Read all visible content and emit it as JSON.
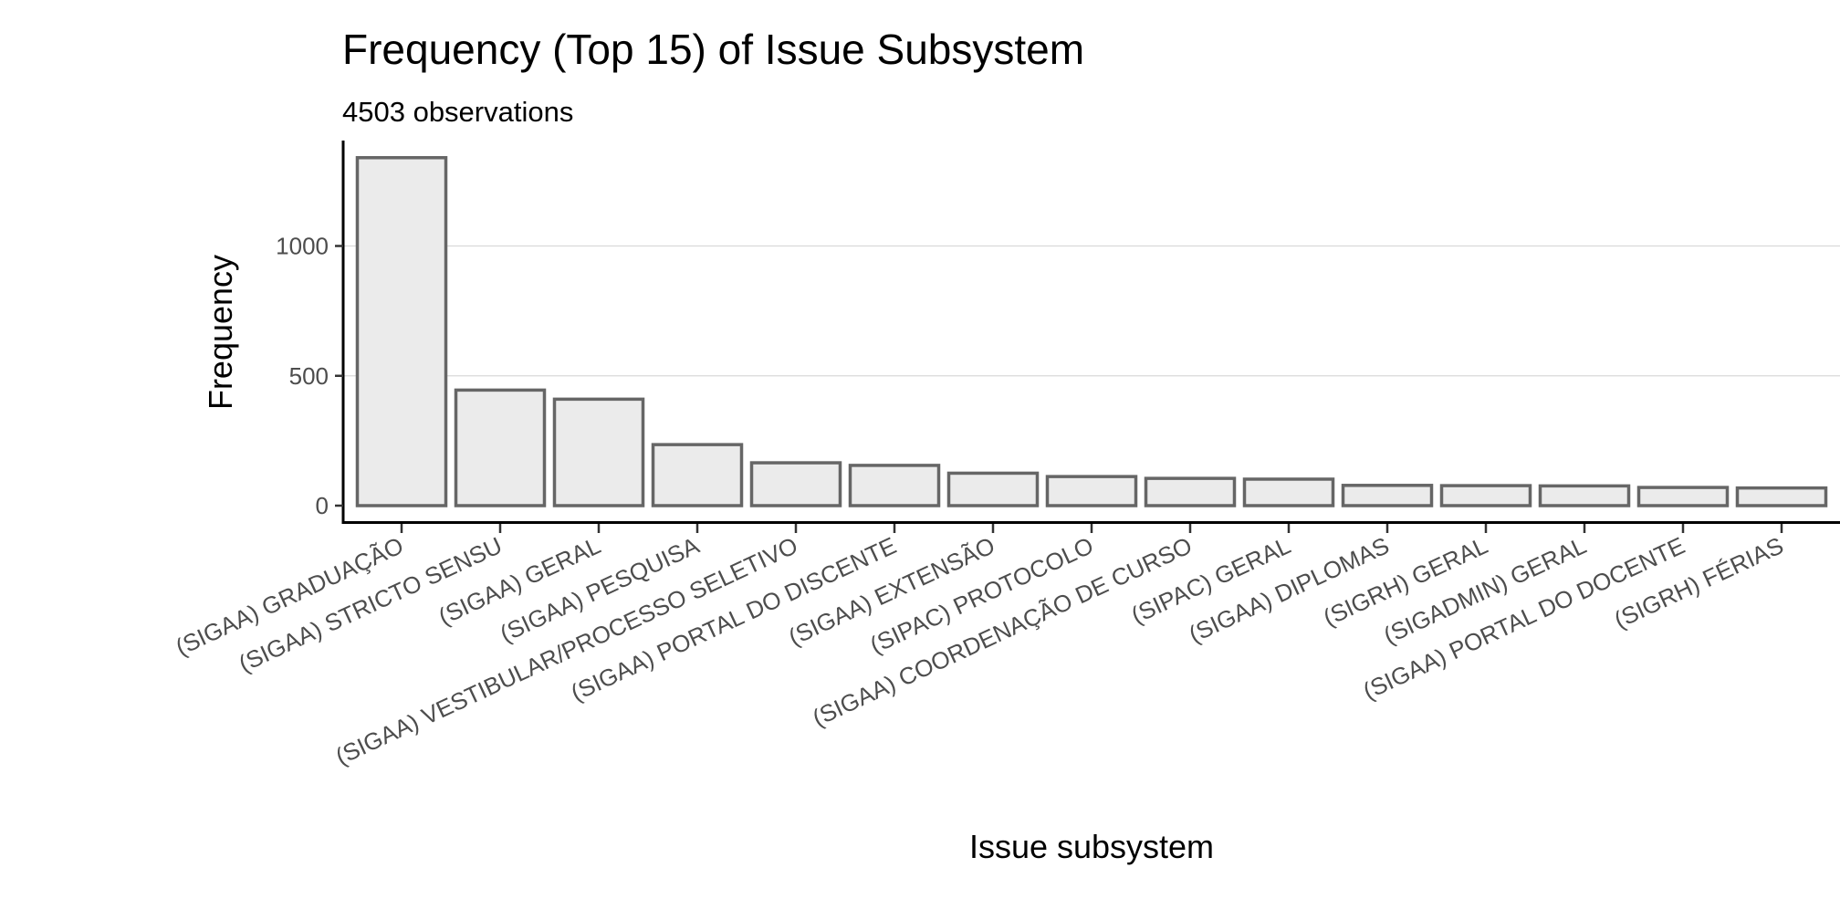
{
  "chart_data": {
    "type": "bar",
    "title": "Frequency (Top 15) of Issue Subsystem",
    "subtitle": "4503 observations",
    "xlabel": "Issue subsystem",
    "ylabel": "Frequency",
    "categories": [
      "(SIGAA) GRADUAÇÃO",
      "(SIGAA) STRICTO SENSU",
      "(SIGAA) GERAL",
      "(SIGAA) PESQUISA",
      "(SIGAA) VESTIBULAR/PROCESSO SELETIVO",
      "(SIGAA) PORTAL DO DISCENTE",
      "(SIGAA) EXTENSÃO",
      "(SIPAC) PROTOCOLO",
      "(SIGAA) COORDENAÇÃO DE CURSO",
      "(SIPAC) GERAL",
      "(SIGAA) DIPLOMAS",
      "(SIGRH) GERAL",
      "(SIGADMIN) GERAL",
      "(SIGAA) PORTAL DO DOCENTE",
      "(SIGRH) FÉRIAS"
    ],
    "values": [
      1340,
      445,
      410,
      235,
      165,
      155,
      125,
      112,
      105,
      102,
      78,
      77,
      76,
      70,
      68
    ],
    "yticks": [
      0,
      500,
      1000
    ],
    "ytick_labels": [
      "0",
      "500",
      "1000"
    ],
    "ylim": [
      -60,
      1400
    ],
    "grid": "horizontal-major",
    "bar_fill": "#ebebeb",
    "bar_stroke": "#666666"
  }
}
